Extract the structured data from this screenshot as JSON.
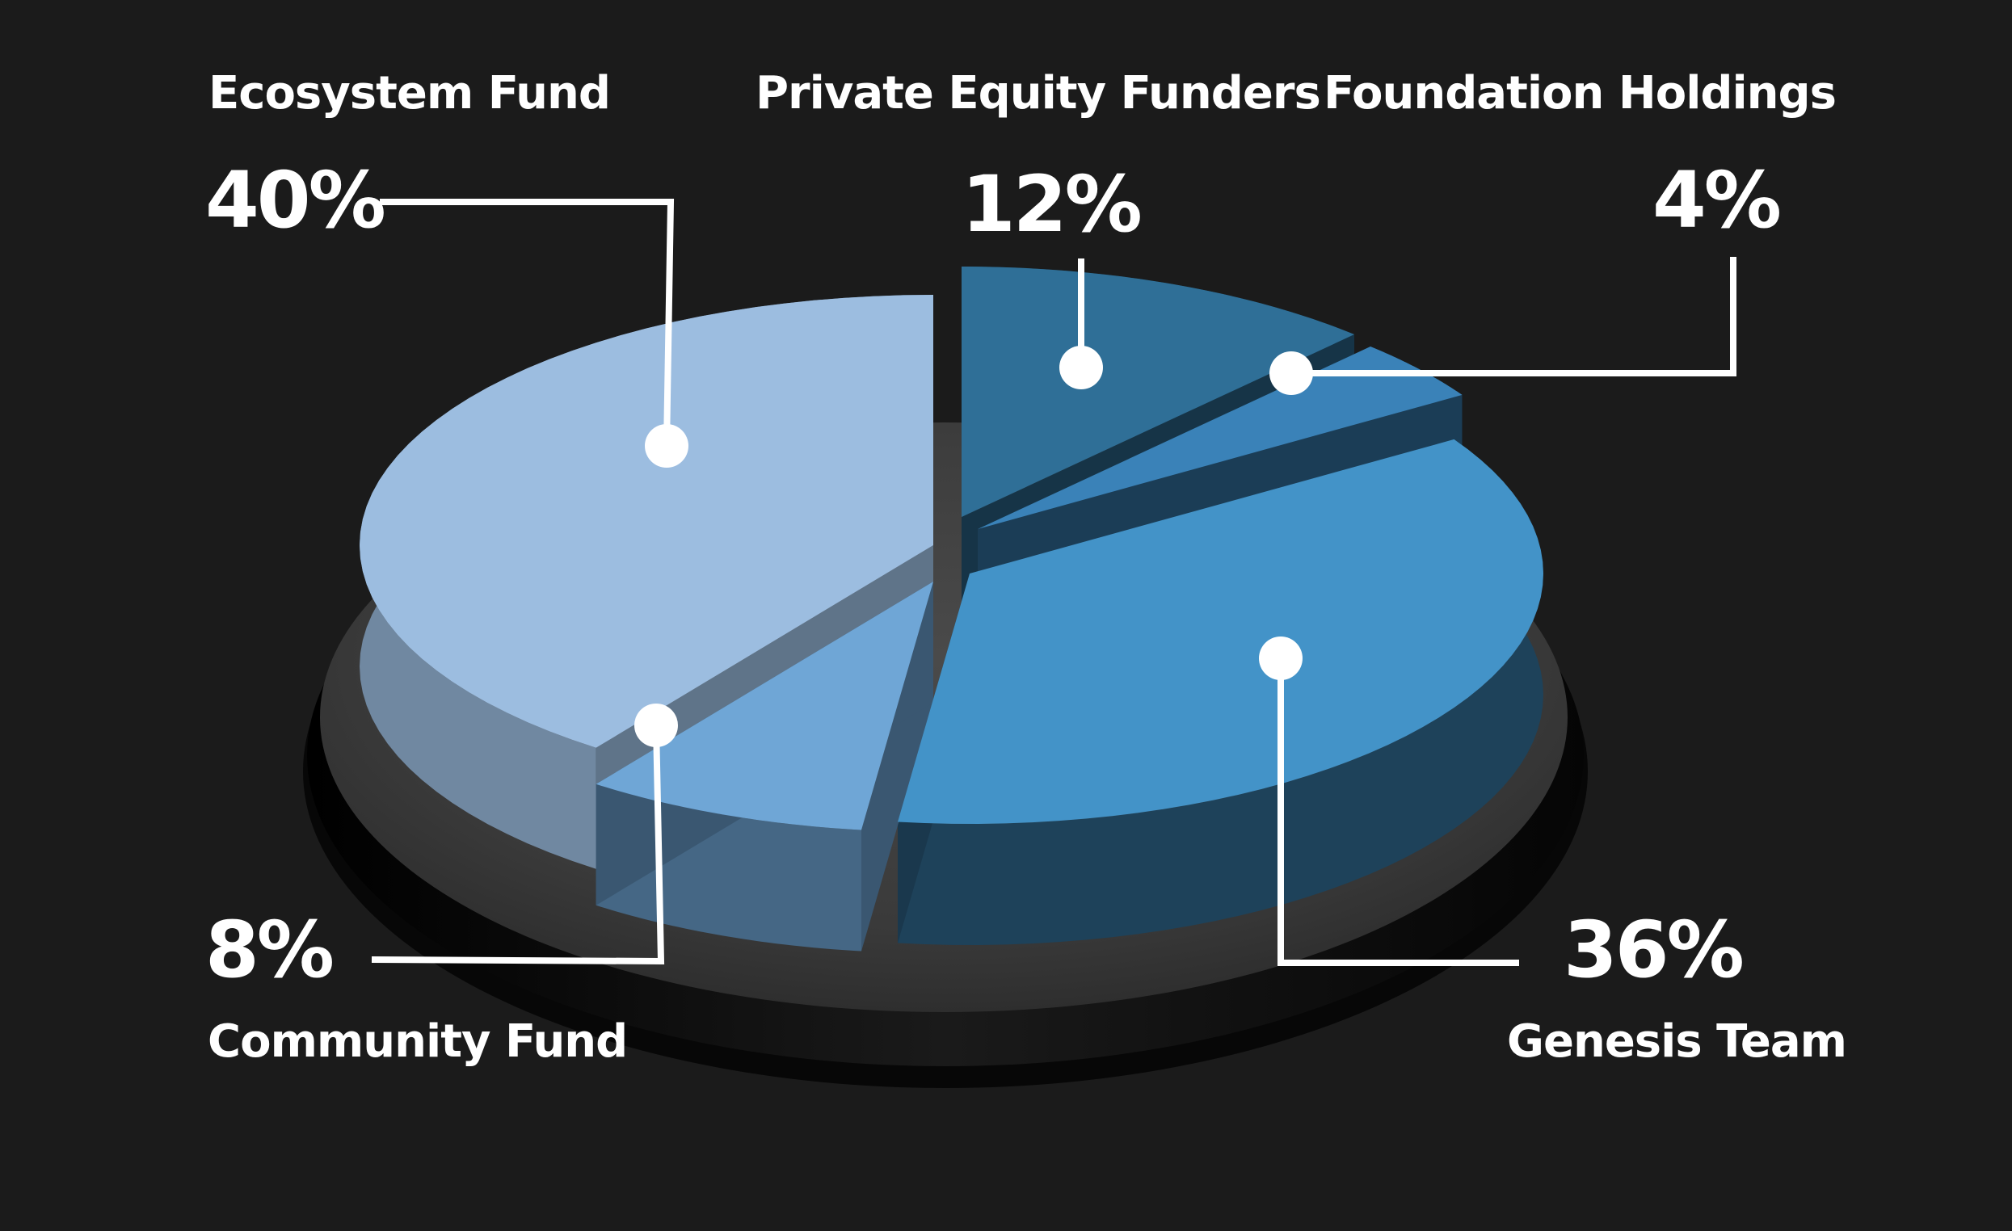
{
  "chart_data": {
    "type": "pie",
    "title": "",
    "style": "3d-exploded-donut-base",
    "legend": "none",
    "slices": [
      {
        "label": "Ecosystem Fund",
        "value": 40,
        "value_label": "40%",
        "color": "#9cbde0"
      },
      {
        "label": "Private Equity Funders",
        "value": 12,
        "value_label": "12%",
        "color": "#2f6f97"
      },
      {
        "label": "Foundation Holdings",
        "value": 4,
        "value_label": "4%",
        "color": "#3a82b8"
      },
      {
        "label": "Genesis Team",
        "value": 36,
        "value_label": "36%",
        "color": "#4393c8"
      },
      {
        "label": "Community Fund",
        "value": 8,
        "value_label": "8%",
        "color": "#6fa6d6"
      }
    ]
  },
  "colors": {
    "background": "#1b1b1b",
    "base_plate": "#3f3f3f",
    "leader_lines": "#ffffff",
    "text": "#ffffff"
  }
}
